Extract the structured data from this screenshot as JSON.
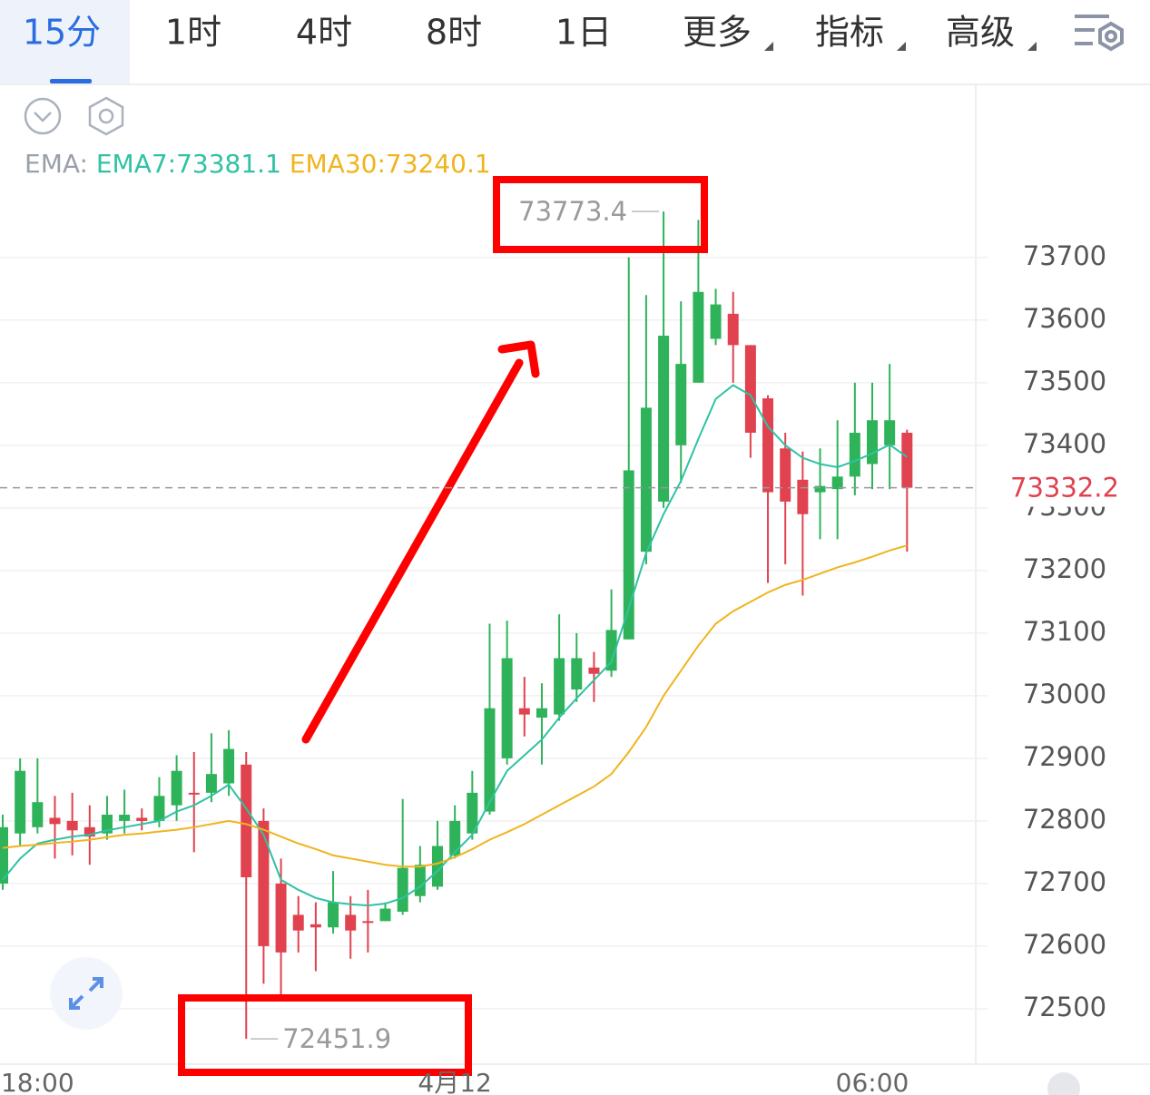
{
  "tabs": [
    "15分",
    "1时",
    "4时",
    "8时",
    "1日",
    "更多",
    "指标",
    "高级"
  ],
  "chart_data": {
    "type": "candlestick",
    "indicator_label": "EMA:",
    "categories": [
      null,
      null,
      "18:00",
      null,
      null,
      null,
      null,
      null,
      null,
      null,
      null,
      null,
      null,
      null,
      null,
      null,
      null,
      null,
      null,
      null,
      null,
      null,
      null,
      null,
      null,
      null,
      "4月12",
      null,
      null,
      null,
      null,
      null,
      null,
      null,
      null,
      null,
      null,
      null,
      null,
      null,
      null,
      null,
      null,
      null,
      null,
      null,
      null,
      null,
      null,
      null,
      "06:00",
      null,
      null
    ],
    "open": [
      72700,
      72780,
      72790,
      72805,
      72800,
      72790,
      72780,
      72800,
      72805,
      72800,
      72825,
      72845,
      72845,
      72860,
      72890,
      72800,
      72700,
      72650,
      72635,
      72630,
      72650,
      72640,
      72640,
      72655,
      72680,
      72695,
      72745,
      72780,
      72815,
      72900,
      72980,
      72965,
      72970,
      73010,
      73045,
      73040,
      73090,
      73230,
      73310,
      73400,
      73500,
      73570,
      73610,
      73560,
      73475,
      73395,
      73345,
      73325,
      73330,
      73350,
      73370,
      73400,
      73420
    ],
    "high": [
      72810,
      72900,
      72900,
      72840,
      72845,
      72825,
      72840,
      72850,
      72820,
      72870,
      72905,
      72910,
      72940,
      72945,
      72910,
      72820,
      72740,
      72680,
      72670,
      72720,
      72680,
      72690,
      72670,
      72835,
      72760,
      72800,
      72825,
      72880,
      73115,
      73120,
      73030,
      73020,
      73130,
      73100,
      73070,
      73170,
      73700,
      73640,
      73773.4,
      73630,
      73760,
      73650,
      73645,
      73560,
      73480,
      73420,
      73390,
      73395,
      73440,
      73500,
      73500,
      73530,
      73425
    ],
    "low": [
      72690,
      72760,
      72780,
      72740,
      72745,
      72730,
      72770,
      72780,
      72785,
      72790,
      72800,
      72750,
      72830,
      72840,
      72451.9,
      72540,
      72520,
      72590,
      72560,
      72620,
      72580,
      72590,
      72640,
      72650,
      72670,
      72690,
      72740,
      72770,
      72810,
      72890,
      72935,
      72890,
      72960,
      72990,
      72990,
      73030,
      73090,
      73210,
      73300,
      73340,
      73500,
      73560,
      73500,
      73380,
      73180,
      73210,
      73160,
      73250,
      73250,
      73320,
      73330,
      73330,
      73230
    ],
    "close": [
      72790,
      72880,
      72830,
      72795,
      72785,
      72775,
      72810,
      72810,
      72800,
      72840,
      72880,
      72843,
      72875,
      72915,
      72710,
      72600,
      72590,
      72625,
      72630,
      72670,
      72625,
      72638,
      72660,
      72725,
      72730,
      72760,
      72800,
      72845,
      72980,
      73060,
      72970,
      72980,
      73060,
      73060,
      73035,
      73105,
      73360,
      73460,
      73575,
      73530,
      73645,
      73625,
      73560,
      73420,
      73325,
      73310,
      73290,
      73335,
      73350,
      73420,
      73440,
      73440,
      73332.2
    ],
    "up_color": "#2fb35a",
    "down_color": "#e0424f",
    "series": [
      {
        "name": "EMA7:73381.1",
        "color": "#2fc2a4",
        "values": [
          72706,
          72740,
          72764,
          72770,
          72775,
          72778,
          72785,
          72790,
          72795,
          72800,
          72815,
          72825,
          72840,
          72858,
          72820,
          72778,
          72706,
          72690,
          72677,
          72670,
          72667,
          72665,
          72668,
          72677,
          72695,
          72720,
          72750,
          72778,
          72830,
          72880,
          72905,
          72930,
          72965,
          72996,
          73025,
          73054,
          73140,
          73228,
          73290,
          73343,
          73410,
          73474,
          73496,
          73480,
          73430,
          73400,
          73380,
          73370,
          73365,
          73375,
          73387,
          73401,
          73381.1
        ]
      },
      {
        "name": "EMA30:73240.1",
        "color": "#f0b41e",
        "values": [
          72757,
          72760,
          72762,
          72765,
          72767,
          72770,
          72774,
          72778,
          72780,
          72783,
          72786,
          72790,
          72795,
          72800,
          72795,
          72786,
          72775,
          72764,
          72755,
          72745,
          72740,
          72735,
          72730,
          72727,
          72727,
          72732,
          72742,
          72755,
          72770,
          72782,
          72795,
          72810,
          72825,
          72840,
          72855,
          72875,
          72910,
          72950,
          73000,
          73040,
          73080,
          73115,
          73135,
          73150,
          73165,
          73177,
          73185,
          73195,
          73205,
          73213,
          73222,
          73232,
          73240.1
        ]
      }
    ],
    "ylim": [
      72413,
      73975
    ],
    "yticks": [
      72500,
      72600,
      72700,
      72800,
      72900,
      73000,
      73100,
      73200,
      73300,
      73400,
      73500,
      73600,
      73700
    ],
    "grid": true
  }
}
